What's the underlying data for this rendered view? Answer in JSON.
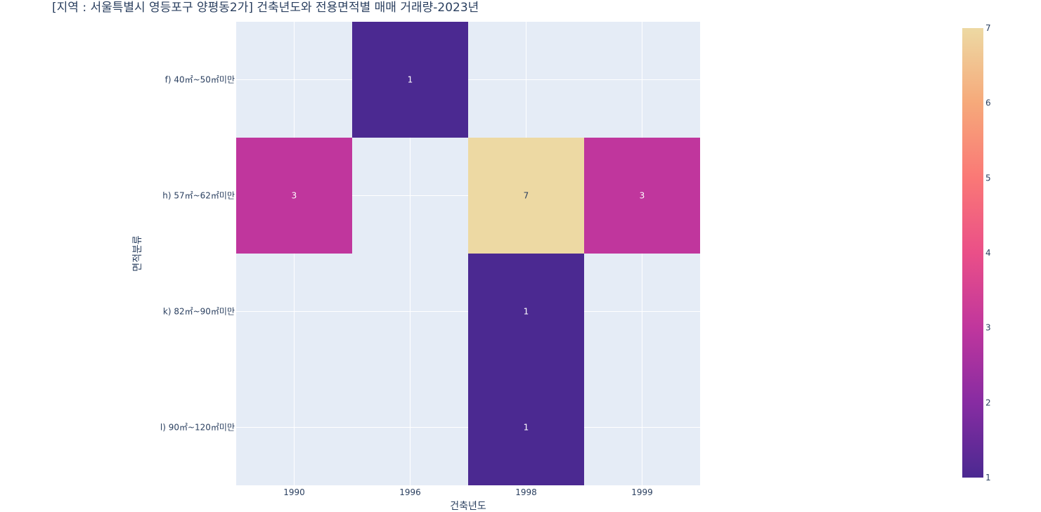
{
  "chart_data": {
    "type": "heatmap",
    "title": "[지역 : 서울특별시 영등포구 양평동2가] 건축년도와 전용면적별 매매 거래량-2023년",
    "xlabel": "건축년도",
    "ylabel": "면적분류",
    "x": [
      "1990",
      "1996",
      "1998",
      "1999"
    ],
    "y": [
      "f) 40㎡~50㎡미만",
      "h) 57㎡~62㎡미만",
      "k) 82㎡~90㎡미만",
      "l) 90㎡~120㎡미만"
    ],
    "z": [
      [
        null,
        1,
        null,
        null
      ],
      [
        3,
        null,
        7,
        3
      ],
      [
        null,
        null,
        1,
        null
      ],
      [
        null,
        null,
        1,
        null
      ]
    ],
    "zlim": [
      1,
      7
    ],
    "colorbar_ticks": [
      1,
      2,
      3,
      4,
      5,
      6,
      7
    ],
    "colorscale": [
      "#4b2991",
      "#872ca2",
      "#c0369d",
      "#ea4f88",
      "#fa7876",
      "#f6a97a",
      "#edd9a3"
    ],
    "plot_background": "#e5ecf6",
    "grid": true
  }
}
